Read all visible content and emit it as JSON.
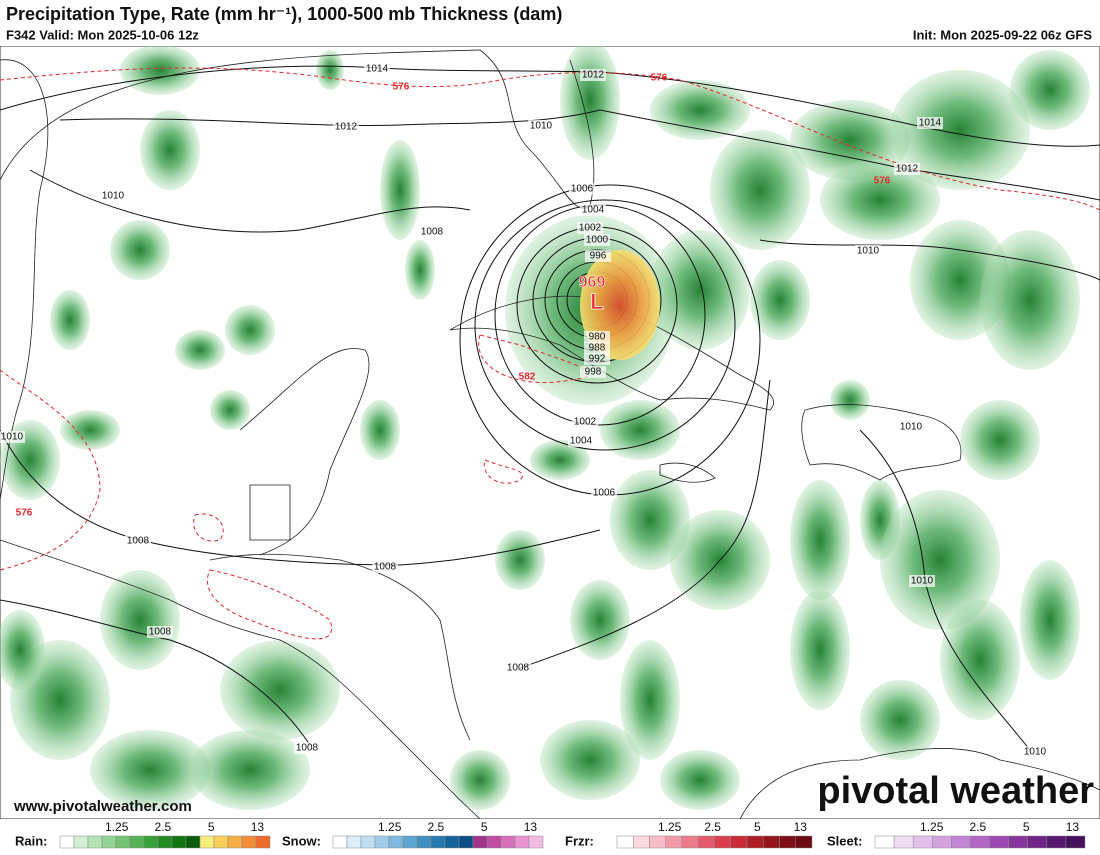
{
  "header": {
    "title": "Precipitation Type, Rate (mm hr⁻¹), 1000-500 mb Thickness (dam)",
    "valid": "F342 Valid: Mon 2025-10-06 12z",
    "init": "Init: Mon 2025-09-22 06z GFS"
  },
  "map": {
    "isobar_labels": [
      1014,
      1012,
      1012,
      1010,
      1014,
      1012,
      1010,
      1006,
      1004,
      1002,
      1000,
      996,
      1008,
      1010,
      980,
      988,
      992,
      998,
      1002,
      1004,
      1010,
      1010,
      1006,
      1008,
      1008,
      1010,
      1008,
      1008,
      1008,
      1010
    ],
    "thickness_labels": [
      576,
      576,
      576,
      582,
      576
    ],
    "low": {
      "pressure": 969,
      "symbol": "L"
    },
    "isobar_color": "#222222",
    "thickness_color": "#e8262a"
  },
  "footer": {
    "website": "www.pivotalweather.com",
    "logo": "pivotal weather"
  },
  "legends": [
    {
      "name": "Rain:",
      "ticks": [
        1.25,
        2.5,
        5,
        13
      ],
      "colors": [
        "#ffffff",
        "#d4f0d4",
        "#b4e3b4",
        "#93d393",
        "#74c374",
        "#55b255",
        "#38a038",
        "#228c22",
        "#137413",
        "#0a5c0a",
        "#f6f07a",
        "#f8d058",
        "#f7ae45",
        "#f48c38",
        "#f06a2a"
      ]
    },
    {
      "name": "Snow:",
      "ticks": [
        1.25,
        2.5,
        5,
        13
      ],
      "colors": [
        "#ffffff",
        "#dceefa",
        "#bfdff3",
        "#9fcde9",
        "#7fb9de",
        "#5fa5d2",
        "#408fc3",
        "#2878b0",
        "#14629a",
        "#0a4d85",
        "#a0348c",
        "#c14ca3",
        "#d86fbc",
        "#e894d0",
        "#f4bce4"
      ]
    },
    {
      "name": "Frzr:",
      "ticks": [
        1.25,
        2.5,
        5,
        13
      ],
      "colors": [
        "#ffffff",
        "#fbd9df",
        "#f7bcc6",
        "#f29aa8",
        "#ec7a89",
        "#e55b6b",
        "#dc3e4d",
        "#c82a36",
        "#b01c26",
        "#94141c",
        "#7e0e16",
        "#6a0a12"
      ]
    },
    {
      "name": "Sleet:",
      "ticks": [
        1.25,
        2.5,
        5,
        13
      ],
      "colors": [
        "#ffffff",
        "#f0dcf4",
        "#e3c0eb",
        "#d4a2e0",
        "#c484d4",
        "#b266c6",
        "#9e4ab4",
        "#88349f",
        "#702488",
        "#581870",
        "#44105a"
      ]
    }
  ]
}
